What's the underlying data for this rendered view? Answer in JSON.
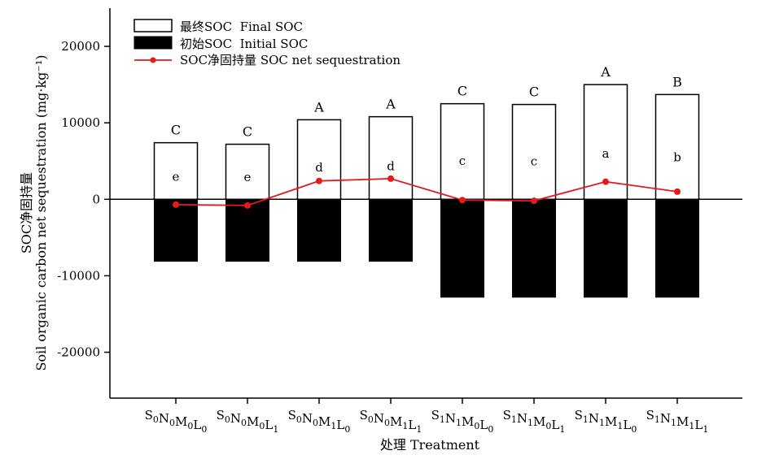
{
  "chart_data": {
    "type": "bar",
    "ylabel_cn": "SOC净固持量",
    "ylabel_en": "Soil organic carbon net sequestration (mg·kg⁻¹)",
    "xlabel": "处理 Treatment",
    "ylim": [
      -26000,
      25000
    ],
    "yticks": [
      -20000,
      -10000,
      0,
      10000,
      20000
    ],
    "legend_placement": "top-left",
    "legend": [
      {
        "label": "最终SOC  Final SOC",
        "style": "open-bar"
      },
      {
        "label": "初始SOC  Initial SOC",
        "style": "filled-bar"
      },
      {
        "label": "SOC净固持量 SOC net sequestration",
        "style": "red-line-marker"
      }
    ],
    "categories": [
      {
        "parts": [
          [
            "S",
            "0"
          ],
          [
            "N",
            "0"
          ],
          [
            "M",
            "0"
          ],
          [
            "L",
            "0"
          ]
        ]
      },
      {
        "parts": [
          [
            "S",
            "0"
          ],
          [
            "N",
            "0"
          ],
          [
            "M",
            "0"
          ],
          [
            "L",
            "1"
          ]
        ]
      },
      {
        "parts": [
          [
            "S",
            "0"
          ],
          [
            "N",
            "0"
          ],
          [
            "M",
            "1"
          ],
          [
            "L",
            "0"
          ]
        ]
      },
      {
        "parts": [
          [
            "S",
            "0"
          ],
          [
            "N",
            "0"
          ],
          [
            "M",
            "1"
          ],
          [
            "L",
            "1"
          ]
        ]
      },
      {
        "parts": [
          [
            "S",
            "1"
          ],
          [
            "N",
            "1"
          ],
          [
            "M",
            "0"
          ],
          [
            "L",
            "0"
          ]
        ]
      },
      {
        "parts": [
          [
            "S",
            "1"
          ],
          [
            "N",
            "1"
          ],
          [
            "M",
            "0"
          ],
          [
            "L",
            "1"
          ]
        ]
      },
      {
        "parts": [
          [
            "S",
            "1"
          ],
          [
            "N",
            "1"
          ],
          [
            "M",
            "1"
          ],
          [
            "L",
            "0"
          ]
        ]
      },
      {
        "parts": [
          [
            "S",
            "1"
          ],
          [
            "N",
            "1"
          ],
          [
            "M",
            "1"
          ],
          [
            "L",
            "1"
          ]
        ]
      }
    ],
    "series": [
      {
        "name": "最终SOC  Final SOC",
        "values": [
          7400,
          7200,
          10400,
          10800,
          12500,
          12400,
          15000,
          13700
        ]
      },
      {
        "name": "初始SOC  Initial SOC",
        "values": [
          -8100,
          -8100,
          -8100,
          -8100,
          -12800,
          -12800,
          -12800,
          -12800
        ]
      },
      {
        "name": "SOC净固持量 SOC net sequestration",
        "values": [
          -700,
          -800,
          2400,
          2700,
          -100,
          -200,
          2300,
          1000
        ]
      }
    ],
    "upper_letters": [
      "C",
      "C",
      "A",
      "A",
      "C",
      "C",
      "A",
      "B"
    ],
    "inner_letters": [
      "e",
      "e",
      "d",
      "d",
      "c",
      "c",
      "a",
      "b"
    ],
    "colors": {
      "line": "#e41a1c",
      "bar_fill": "#000000",
      "open_fill": "#ffffff"
    }
  }
}
